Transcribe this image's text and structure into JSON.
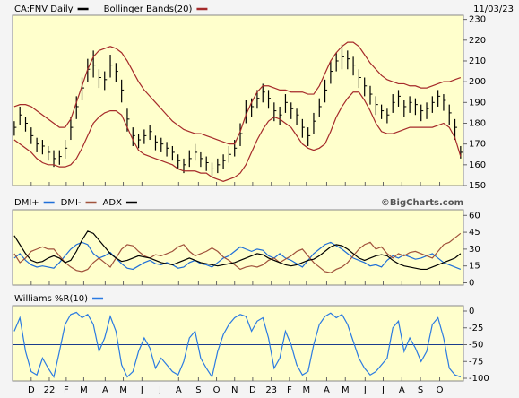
{
  "date": "11/03/23",
  "watermark": "©BigCharts.com",
  "chart_data": [
    {
      "type": "ohlc",
      "ylim": [
        150,
        232
      ],
      "yticks": [
        150,
        160,
        170,
        180,
        190,
        200,
        210,
        220,
        230
      ],
      "series": [
        {
          "name": "CA:FNV Daily",
          "color": "#000000",
          "high": [
            181,
            188,
            183,
            178,
            173,
            172,
            169,
            167,
            167,
            172,
            183,
            193,
            202,
            211,
            215,
            206,
            205,
            213,
            209,
            201,
            187,
            178,
            175,
            177,
            179,
            174,
            173,
            171,
            169,
            165,
            163,
            167,
            170,
            166,
            164,
            161,
            163,
            165,
            169,
            172,
            180,
            191,
            192,
            196,
            199,
            196,
            190,
            188,
            194,
            190,
            187,
            182,
            178,
            185,
            192,
            201,
            210,
            214,
            218,
            215,
            212,
            206,
            202,
            198,
            193,
            189,
            187,
            194,
            196,
            191,
            193,
            192,
            189,
            190,
            193,
            196,
            194,
            189,
            182,
            169
          ],
          "low": [
            174,
            179,
            176,
            170,
            166,
            165,
            162,
            159,
            160,
            163,
            172,
            182,
            191,
            200,
            202,
            197,
            196,
            202,
            200,
            190,
            176,
            169,
            168,
            170,
            172,
            167,
            166,
            164,
            162,
            158,
            156,
            159,
            162,
            159,
            157,
            154,
            156,
            158,
            161,
            164,
            169,
            180,
            183,
            187,
            190,
            187,
            181,
            179,
            185,
            182,
            179,
            173,
            169,
            175,
            183,
            190,
            199,
            205,
            206,
            206,
            203,
            197,
            193,
            189,
            184,
            182,
            180,
            185,
            188,
            183,
            185,
            184,
            181,
            182,
            185,
            188,
            186,
            179,
            172,
            163
          ],
          "close": [
            178,
            184,
            180,
            174,
            170,
            169,
            166,
            163,
            164,
            168,
            178,
            188,
            197,
            206,
            208,
            202,
            201,
            208,
            205,
            196,
            182,
            174,
            172,
            174,
            176,
            171,
            170,
            168,
            166,
            162,
            160,
            163,
            166,
            163,
            161,
            158,
            160,
            162,
            165,
            168,
            175,
            186,
            188,
            192,
            195,
            192,
            186,
            184,
            190,
            187,
            184,
            178,
            174,
            181,
            188,
            196,
            205,
            210,
            212,
            211,
            208,
            202,
            198,
            194,
            189,
            186,
            184,
            190,
            193,
            188,
            190,
            189,
            186,
            187,
            190,
            193,
            191,
            185,
            178,
            166
          ]
        },
        {
          "name": "Bollinger Bands(20)",
          "color": "#a52a2a",
          "upper": [
            188,
            189,
            189,
            188,
            186,
            184,
            182,
            180,
            178,
            178,
            182,
            190,
            198,
            206,
            212,
            215,
            216,
            217,
            216,
            214,
            210,
            205,
            200,
            196,
            193,
            190,
            187,
            184,
            181,
            179,
            177,
            176,
            175,
            175,
            174,
            173,
            172,
            171,
            170,
            170,
            176,
            184,
            190,
            195,
            198,
            198,
            197,
            196,
            196,
            195,
            195,
            195,
            194,
            194,
            198,
            204,
            210,
            214,
            217,
            219,
            219,
            217,
            213,
            209,
            206,
            203,
            201,
            200,
            199,
            199,
            198,
            198,
            197,
            197,
            198,
            199,
            200,
            200,
            201,
            202
          ],
          "lower": [
            172,
            170,
            168,
            166,
            163,
            161,
            160,
            160,
            159,
            159,
            160,
            163,
            168,
            174,
            180,
            183,
            185,
            186,
            186,
            184,
            178,
            172,
            167,
            165,
            164,
            163,
            162,
            161,
            160,
            158,
            157,
            157,
            157,
            156,
            156,
            154,
            153,
            152,
            153,
            154,
            156,
            160,
            166,
            172,
            177,
            181,
            183,
            182,
            180,
            178,
            174,
            170,
            168,
            167,
            168,
            170,
            176,
            183,
            188,
            192,
            195,
            195,
            191,
            186,
            180,
            176,
            175,
            175,
            176,
            177,
            178,
            178,
            178,
            178,
            178,
            179,
            180,
            178,
            173,
            164
          ]
        }
      ]
    },
    {
      "type": "line",
      "ylim": [
        -2,
        65
      ],
      "yticks": [
        0,
        15,
        30,
        45,
        60
      ],
      "series": [
        {
          "name": "DMI+",
          "color": "#1f6fd8",
          "values": [
            22,
            26,
            20,
            16,
            14,
            15,
            14,
            13,
            18,
            24,
            30,
            34,
            36,
            34,
            26,
            22,
            24,
            27,
            22,
            17,
            13,
            12,
            15,
            18,
            20,
            17,
            16,
            18,
            16,
            13,
            14,
            18,
            20,
            17,
            16,
            14,
            18,
            22,
            24,
            28,
            32,
            30,
            28,
            30,
            29,
            24,
            22,
            26,
            22,
            20,
            17,
            14,
            20,
            26,
            30,
            34,
            36,
            33,
            30,
            26,
            22,
            20,
            18,
            15,
            16,
            14,
            20,
            24,
            22,
            25,
            23,
            21,
            22,
            24,
            26,
            22,
            18,
            16,
            14,
            12
          ]
        },
        {
          "name": "DMI-",
          "color": "#a0523c",
          "values": [
            26,
            18,
            22,
            28,
            30,
            32,
            30,
            30,
            24,
            18,
            14,
            11,
            10,
            12,
            18,
            22,
            18,
            14,
            22,
            30,
            34,
            33,
            28,
            24,
            22,
            25,
            24,
            26,
            28,
            32,
            34,
            28,
            24,
            26,
            28,
            31,
            28,
            23,
            20,
            16,
            12,
            14,
            15,
            14,
            16,
            20,
            22,
            18,
            21,
            24,
            28,
            30,
            24,
            18,
            14,
            10,
            9,
            12,
            14,
            18,
            24,
            30,
            34,
            36,
            30,
            32,
            26,
            22,
            26,
            24,
            27,
            28,
            26,
            24,
            22,
            28,
            34,
            36,
            40,
            44
          ]
        },
        {
          "name": "ADX",
          "color": "#000000",
          "values": [
            42,
            34,
            26,
            20,
            18,
            19,
            22,
            24,
            22,
            18,
            20,
            28,
            38,
            46,
            44,
            38,
            32,
            26,
            22,
            19,
            20,
            22,
            24,
            23,
            22,
            20,
            18,
            17,
            16,
            18,
            20,
            22,
            20,
            18,
            17,
            16,
            15,
            16,
            17,
            18,
            20,
            22,
            24,
            26,
            25,
            22,
            20,
            18,
            16,
            15,
            16,
            18,
            20,
            21,
            24,
            28,
            32,
            34,
            33,
            30,
            26,
            22,
            20,
            22,
            24,
            25,
            24,
            20,
            17,
            15,
            14,
            13,
            12,
            12,
            14,
            16,
            18,
            20,
            22,
            26
          ]
        }
      ]
    },
    {
      "type": "line",
      "ylim": [
        -104,
        8
      ],
      "yticks": [
        0,
        -25,
        -50,
        -75,
        -100
      ],
      "reference": -50,
      "xlim": [
        -0.3,
        79.5
      ],
      "xticks": [
        {
          "value": 3,
          "label": "D"
        },
        {
          "value": 6.2,
          "label": "22"
        },
        {
          "value": 9.2,
          "label": "F"
        },
        {
          "value": 12.3,
          "label": "M"
        },
        {
          "value": 16.1,
          "label": "A"
        },
        {
          "value": 19.3,
          "label": "M"
        },
        {
          "value": 22.6,
          "label": "J"
        },
        {
          "value": 25.8,
          "label": "J"
        },
        {
          "value": 29.1,
          "label": "A"
        },
        {
          "value": 32.6,
          "label": "S"
        },
        {
          "value": 35.8,
          "label": "O"
        },
        {
          "value": 39,
          "label": "N"
        },
        {
          "value": 42.2,
          "label": "D"
        },
        {
          "value": 45.5,
          "label": "23"
        },
        {
          "value": 48.7,
          "label": "F"
        },
        {
          "value": 51.7,
          "label": "M"
        },
        {
          "value": 55.3,
          "label": "A"
        },
        {
          "value": 58.6,
          "label": "M"
        },
        {
          "value": 62.1,
          "label": "J"
        },
        {
          "value": 65.3,
          "label": "J"
        },
        {
          "value": 68.6,
          "label": "A"
        },
        {
          "value": 71.9,
          "label": "S"
        },
        {
          "value": 75.3,
          "label": "O"
        }
      ],
      "series": [
        {
          "name": "Williams %R(10)",
          "color": "#2a7ae2",
          "values": [
            -30,
            -10,
            -60,
            -90,
            -95,
            -70,
            -85,
            -98,
            -60,
            -20,
            -5,
            -2,
            -10,
            -5,
            -20,
            -60,
            -40,
            -8,
            -30,
            -80,
            -98,
            -90,
            -60,
            -40,
            -55,
            -85,
            -70,
            -80,
            -90,
            -95,
            -75,
            -40,
            -30,
            -70,
            -85,
            -98,
            -60,
            -35,
            -20,
            -10,
            -5,
            -8,
            -30,
            -15,
            -10,
            -40,
            -85,
            -70,
            -30,
            -50,
            -80,
            -95,
            -90,
            -50,
            -20,
            -8,
            -3,
            -10,
            -5,
            -20,
            -45,
            -70,
            -85,
            -95,
            -90,
            -80,
            -70,
            -25,
            -15,
            -60,
            -40,
            -55,
            -75,
            -60,
            -20,
            -10,
            -40,
            -85,
            -95,
            -98
          ]
        }
      ]
    }
  ]
}
